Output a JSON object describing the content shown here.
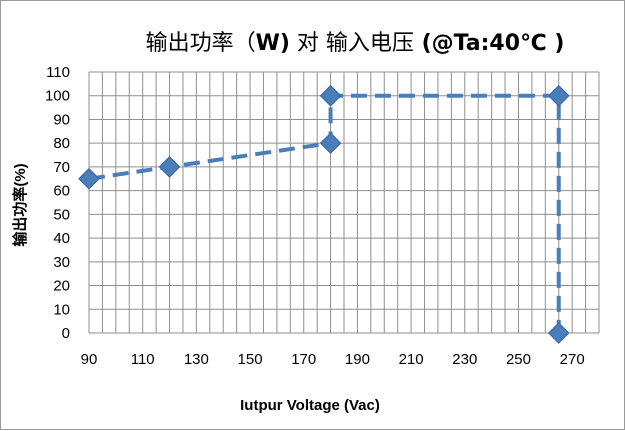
{
  "chart_data": {
    "type": "line",
    "title": "输出功率（W) 对 输入电压  (@Ta:40℃  )",
    "title_parts": {
      "part_1": "输出功率（",
      "part_2": "W)",
      "part_3": " 对 输入电压",
      "part_4": "  (@Ta:40",
      "part_5": "℃  )"
    },
    "xlabel": "Iutpur Voltage  (Vac)",
    "ylabel": "输出功率(%)",
    "x_ticks": [
      90,
      110,
      130,
      150,
      170,
      190,
      210,
      230,
      250,
      270
    ],
    "y_ticks": [
      0,
      10,
      20,
      30,
      40,
      50,
      60,
      70,
      80,
      90,
      100,
      110
    ],
    "xlim": [
      90,
      280
    ],
    "ylim": [
      0,
      110
    ],
    "grid": true,
    "series": [
      {
        "x": [
          90,
          120,
          180,
          180,
          265,
          265
        ],
        "y": [
          65,
          70,
          80,
          100,
          100,
          0
        ],
        "color": "#4a7ebb"
      }
    ]
  }
}
